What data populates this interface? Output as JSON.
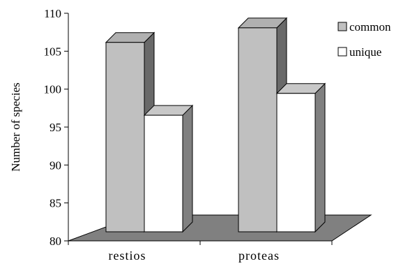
{
  "chart_data": {
    "type": "bar",
    "categories": [
      "restios",
      "proteas"
    ],
    "series": [
      {
        "name": "common",
        "values": [
          106,
          108
        ],
        "color": "#c0c0c0"
      },
      {
        "name": "unique",
        "values": [
          96,
          99
        ],
        "color": "#ffffff"
      }
    ],
    "ylabel": "Number of species",
    "ylim": [
      80,
      110
    ],
    "yticks": [
      80,
      85,
      90,
      95,
      100,
      105,
      110
    ],
    "legend_position": "top-right",
    "style": "3d-column",
    "colors": {
      "floor": "#808080",
      "side_common": "#696969",
      "side_unique": "#808080",
      "top_common": "#b0b0b0",
      "top_unique": "#c8c8c8"
    }
  }
}
